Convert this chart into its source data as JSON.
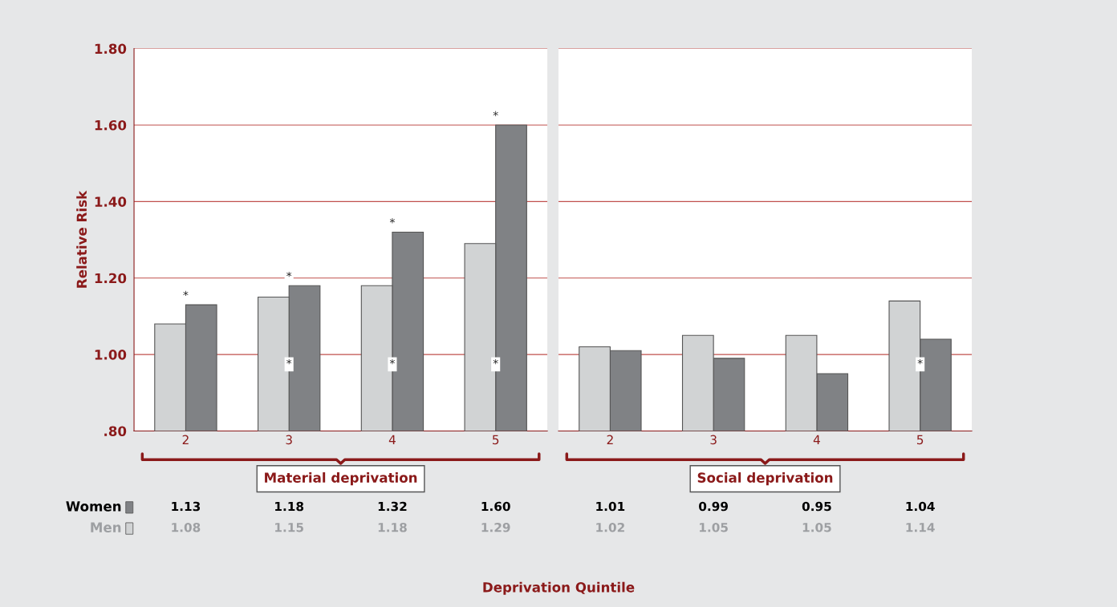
{
  "chart_data": [
    {
      "type": "bar",
      "title": "Material deprivation",
      "ylabel": "Relative Risk",
      "xlabel": "Deprivation Quintile",
      "categories": [
        "2",
        "3",
        "4",
        "5"
      ],
      "series": [
        {
          "name": "Women",
          "color": "#808285",
          "values": [
            1.13,
            1.18,
            1.32,
            1.6
          ],
          "value_labels": [
            "1.13",
            "1.18",
            "1.32",
            "1.60"
          ]
        },
        {
          "name": "Men",
          "color": "#d1d3d4",
          "values": [
            1.08,
            1.15,
            1.18,
            1.29
          ],
          "value_labels": [
            "1.08",
            "1.15",
            "1.18",
            "1.29"
          ]
        }
      ],
      "ylim": [
        0.8,
        1.8
      ],
      "yticks": [
        {
          "value": 0.8,
          "label": ".80"
        },
        {
          "value": 1.0,
          "label": "1.00"
        },
        {
          "value": 1.2,
          "label": "1.20"
        },
        {
          "value": 1.4,
          "label": "1.40"
        },
        {
          "value": 1.6,
          "label": "1.60"
        },
        {
          "value": 1.8,
          "label": "1.80"
        }
      ],
      "grid": "y",
      "legend": "bottom left",
      "annotations": [
        {
          "text": "*",
          "x": "2",
          "y": 1.13
        },
        {
          "text": "*",
          "x": "3",
          "y": 1.18
        },
        {
          "text": "*",
          "x": "4",
          "y": 1.32
        },
        {
          "text": "*",
          "x": "5",
          "y": 1.6
        },
        {
          "text": "*",
          "x": "3",
          "y": 1.0
        },
        {
          "text": "*",
          "x": "4",
          "y": 1.0
        },
        {
          "text": "*",
          "x": "5",
          "y": 1.0
        }
      ]
    },
    {
      "type": "bar",
      "title": "Social deprivation",
      "categories": [
        "2",
        "3",
        "4",
        "5"
      ],
      "series": [
        {
          "color": "#808285",
          "values": [
            1.01,
            0.99,
            0.95,
            1.04
          ],
          "value_labels": [
            "1.01",
            "0.99",
            "0.95",
            "1.04"
          ]
        },
        {
          "color": "#d1d3d4",
          "values": [
            1.02,
            1.05,
            1.05,
            1.14
          ],
          "value_labels": [
            "1.02",
            "1.05",
            "1.05",
            "1.14"
          ]
        }
      ],
      "ylim": [
        0.8,
        1.8
      ],
      "yticks": [
        {
          "value": 0.8,
          "label": null
        },
        {
          "value": 1.0,
          "label": null
        },
        {
          "value": 1.2,
          "label": null
        },
        {
          "value": 1.4,
          "label": null
        },
        {
          "value": 1.6,
          "label": null
        },
        {
          "value": 1.8,
          "label": null
        }
      ],
      "grid": "y",
      "tick_labels": "x",
      "annotations": [
        {
          "text": "*",
          "x": "5",
          "y": 1.0
        }
      ]
    }
  ]
}
